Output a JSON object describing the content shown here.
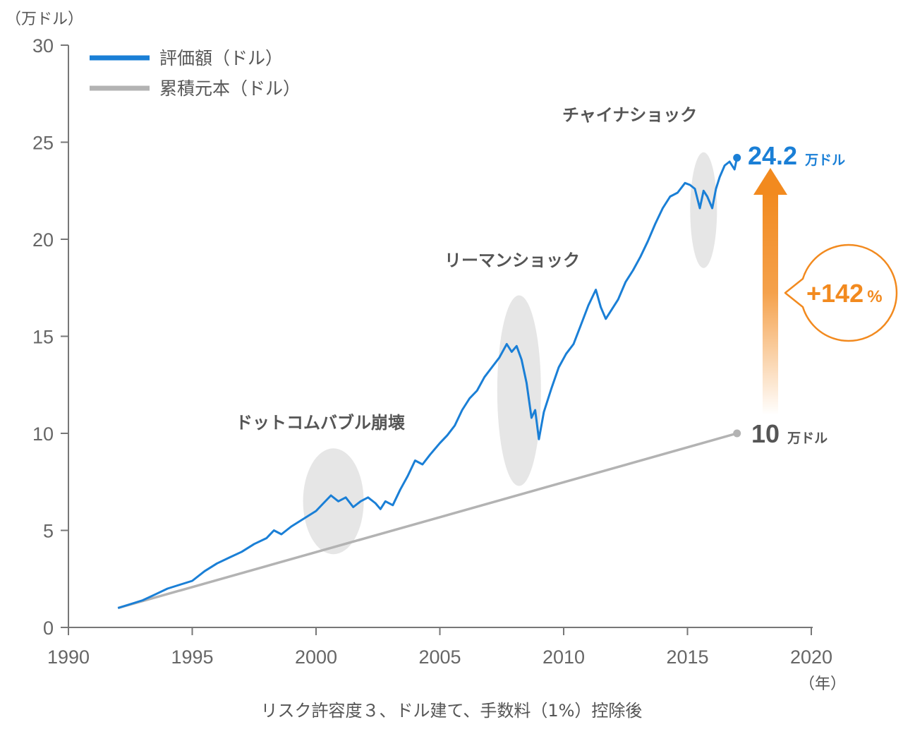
{
  "chart_data": {
    "type": "line",
    "y_unit": "（万ドル）",
    "x_unit": "（年）",
    "xlim": [
      1990,
      2020
    ],
    "ylim": [
      0,
      30
    ],
    "x_ticks": [
      1990,
      1995,
      2000,
      2005,
      2010,
      2015,
      2020
    ],
    "y_ticks": [
      0,
      5,
      10,
      15,
      20,
      25,
      30
    ],
    "grid": false,
    "legend_position": "top-left",
    "footnote": "リスク許容度３、ドル建て、手数料（1%）控除後",
    "colors": {
      "value": "#1a7fd6",
      "principal": "#b3b3b3",
      "highlight": "#e6e6e6",
      "growth": "#f28a1f",
      "text": "#555555"
    },
    "series": [
      {
        "name": "評価額（ドル）",
        "x": [
          1992.0,
          1992.5,
          1993.0,
          1993.5,
          1994.0,
          1994.5,
          1995.0,
          1995.5,
          1996.0,
          1996.5,
          1997.0,
          1997.5,
          1998.0,
          1998.3,
          1998.6,
          1999.0,
          1999.5,
          2000.0,
          2000.3,
          2000.6,
          2000.9,
          2001.2,
          2001.5,
          2001.8,
          2002.1,
          2002.4,
          2002.6,
          2002.8,
          2003.1,
          2003.4,
          2003.7,
          2004.0,
          2004.3,
          2004.6,
          2005.0,
          2005.3,
          2005.6,
          2005.9,
          2006.2,
          2006.5,
          2006.8,
          2007.1,
          2007.4,
          2007.7,
          2007.9,
          2008.1,
          2008.3,
          2008.5,
          2008.7,
          2008.85,
          2009.0,
          2009.2,
          2009.5,
          2009.8,
          2010.1,
          2010.4,
          2010.7,
          2011.0,
          2011.3,
          2011.5,
          2011.7,
          2011.9,
          2012.2,
          2012.5,
          2012.8,
          2013.1,
          2013.4,
          2013.7,
          2014.0,
          2014.3,
          2014.6,
          2014.9,
          2015.1,
          2015.3,
          2015.5,
          2015.65,
          2015.8,
          2016.0,
          2016.15,
          2016.3,
          2016.5,
          2016.7,
          2016.9,
          2017.0
        ],
        "values": [
          1.0,
          1.2,
          1.4,
          1.7,
          2.0,
          2.2,
          2.4,
          2.9,
          3.3,
          3.6,
          3.9,
          4.3,
          4.6,
          5.0,
          4.8,
          5.2,
          5.6,
          6.0,
          6.4,
          6.8,
          6.5,
          6.7,
          6.2,
          6.5,
          6.7,
          6.4,
          6.1,
          6.5,
          6.3,
          7.1,
          7.8,
          8.6,
          8.4,
          8.9,
          9.5,
          9.9,
          10.4,
          11.2,
          11.8,
          12.2,
          12.9,
          13.4,
          13.9,
          14.6,
          14.2,
          14.5,
          13.8,
          12.6,
          10.8,
          11.2,
          9.7,
          11.1,
          12.3,
          13.4,
          14.1,
          14.6,
          15.6,
          16.6,
          17.4,
          16.5,
          15.9,
          16.3,
          16.9,
          17.8,
          18.4,
          19.1,
          19.9,
          20.8,
          21.6,
          22.2,
          22.4,
          22.9,
          22.8,
          22.6,
          21.6,
          22.5,
          22.2,
          21.6,
          22.6,
          23.2,
          23.8,
          24.0,
          23.6,
          24.2
        ]
      },
      {
        "name": "累積元本（ドル）",
        "x": [
          1992.0,
          2017.0
        ],
        "values": [
          1.0,
          10.0
        ]
      }
    ],
    "annotations": [
      {
        "text": "ドットコムバブル崩壊",
        "x": 2000.7,
        "y": 6.5
      },
      {
        "text": "リーマンショック",
        "x": 2008.2,
        "y": 12.2
      },
      {
        "text": "チャイナショック",
        "x": 2015.65,
        "y": 21.5
      }
    ],
    "end_labels": {
      "value": {
        "number": "24.2",
        "unit": "万ドル"
      },
      "principal": {
        "number": "10",
        "unit": "万ドル"
      }
    },
    "growth": {
      "number": "+142",
      "unit": "%"
    }
  }
}
